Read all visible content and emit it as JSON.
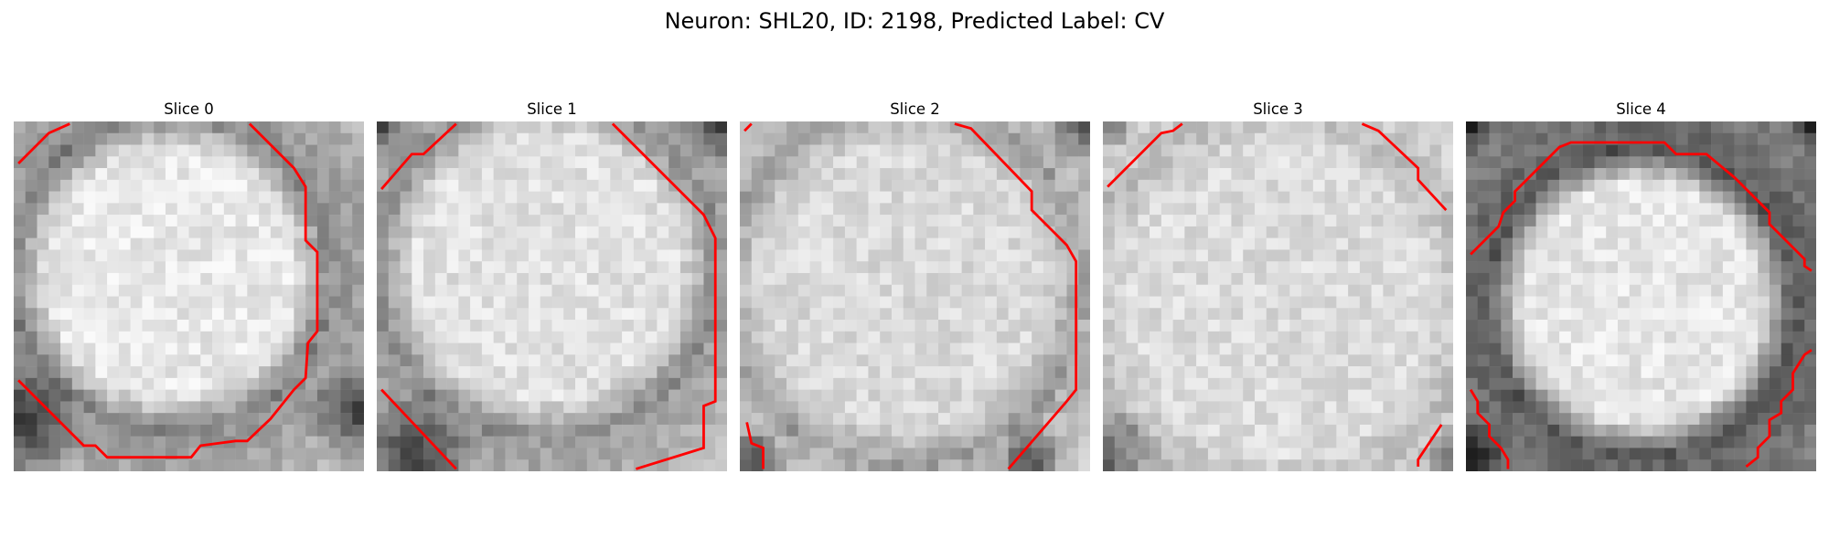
{
  "figure": {
    "title": "Neuron: SHL20, ID: 2198, Predicted Label: CV",
    "contour_color": "#ff0000"
  },
  "slices": [
    {
      "title": "Slice 0"
    },
    {
      "title": "Slice 1"
    },
    {
      "title": "Slice 2"
    },
    {
      "title": "Slice 3"
    },
    {
      "title": "Slice 4"
    }
  ]
}
